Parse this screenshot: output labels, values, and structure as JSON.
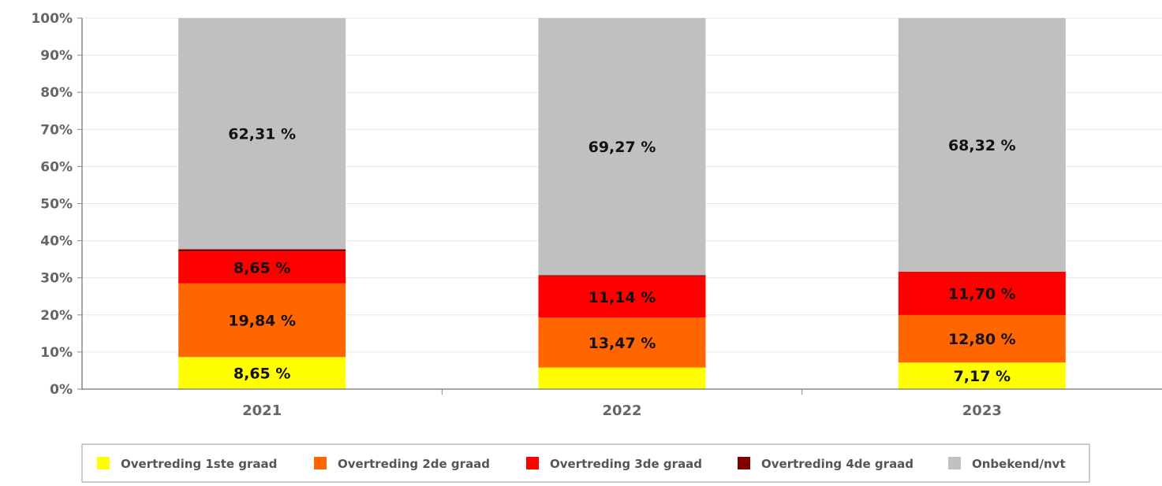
{
  "chart_data": {
    "type": "bar",
    "stacked": true,
    "categories": [
      "2021",
      "2022",
      "2023"
    ],
    "ylim": [
      0,
      100
    ],
    "yticks": [
      "0%",
      "10%",
      "20%",
      "30%",
      "40%",
      "50%",
      "60%",
      "70%",
      "80%",
      "90%",
      "100%"
    ],
    "grid": true,
    "legend_position": "bottom",
    "series": [
      {
        "name": "Overtreding 1ste graad",
        "color": "#ffff00",
        "values": [
          8.65,
          5.82,
          7.17
        ],
        "labels": [
          "8,65 %",
          "",
          "7,17 %"
        ]
      },
      {
        "name": "Overtreding 2de graad",
        "color": "#ff6600",
        "values": [
          19.84,
          13.47,
          12.8
        ],
        "labels": [
          "19,84 %",
          "13,47 %",
          "12,80 %"
        ]
      },
      {
        "name": "Overtreding 3de graad",
        "color": "#ff0000",
        "values": [
          8.65,
          11.14,
          11.7
        ],
        "labels": [
          "8,65 %",
          "11,14 %",
          "11,70 %"
        ]
      },
      {
        "name": "Overtreding 4de graad",
        "color": "#800000",
        "values": [
          0.55,
          0.3,
          0.0
        ],
        "labels": [
          "",
          "",
          ""
        ]
      },
      {
        "name": "Onbekend/nvt",
        "color": "#c0c0c0",
        "values": [
          62.31,
          69.27,
          68.32
        ],
        "labels": [
          "62,31 %",
          "69,27 %",
          "68,32 %"
        ]
      }
    ]
  }
}
